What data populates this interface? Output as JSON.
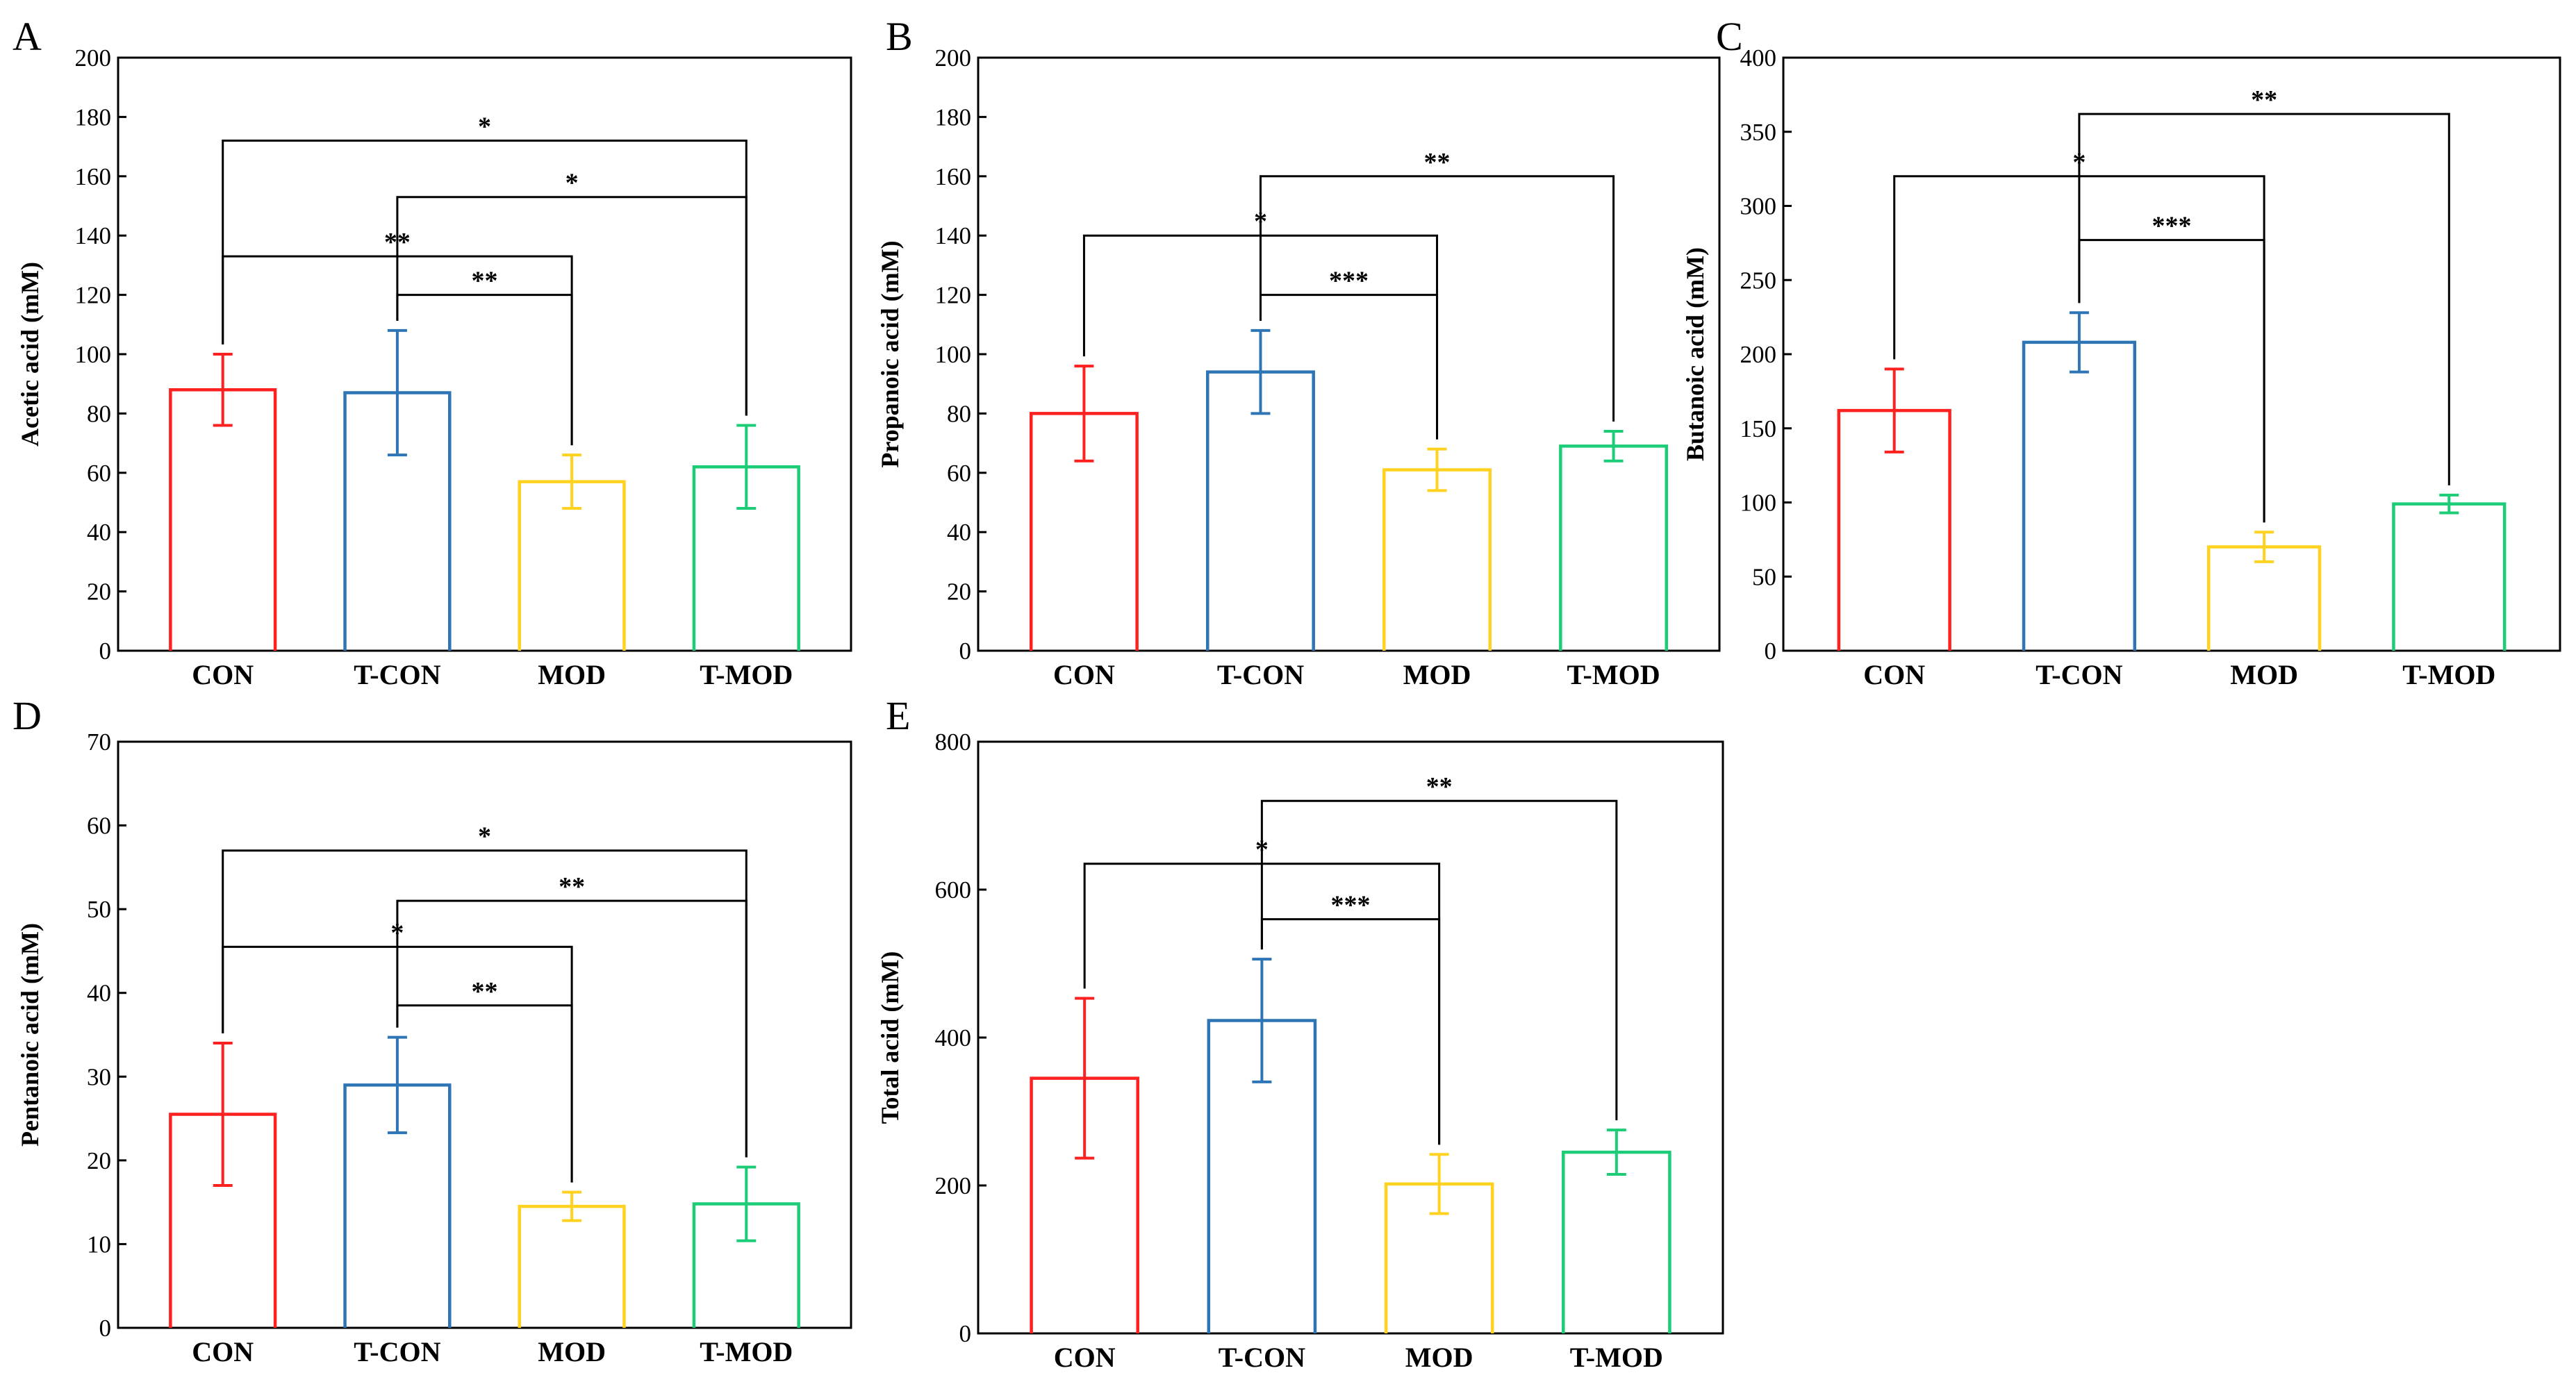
{
  "chart_data": [
    {
      "id": "A",
      "type": "bar",
      "panel_label": "A",
      "ylabel": "Acetic acid (mM)",
      "categories": [
        "CON",
        "T-CON",
        "MOD",
        "T-MOD"
      ],
      "values": [
        88,
        87,
        57,
        62
      ],
      "errors": [
        12,
        21,
        9,
        14
      ],
      "colors": [
        "#ff2020",
        "#2e75b6",
        "#ffd21f",
        "#1ccc76"
      ],
      "ylim": [
        0,
        200
      ],
      "yticks": [
        0,
        20,
        40,
        60,
        80,
        100,
        120,
        140,
        160,
        180,
        200
      ],
      "significance": [
        {
          "from": 0,
          "to": 3,
          "level": 172,
          "label": "*"
        },
        {
          "from": 1,
          "to": 3,
          "level": 153,
          "label": "*"
        },
        {
          "from": 0,
          "to": 2,
          "level": 133,
          "label": "**"
        },
        {
          "from": 1,
          "to": 2,
          "level": 120,
          "label": "**"
        }
      ]
    },
    {
      "id": "B",
      "type": "bar",
      "panel_label": "B",
      "ylabel": "Propanoic acid (mM)",
      "categories": [
        "CON",
        "T-CON",
        "MOD",
        "T-MOD"
      ],
      "values": [
        80,
        94,
        61,
        69
      ],
      "errors": [
        16,
        14,
        7,
        5
      ],
      "colors": [
        "#ff2020",
        "#2e75b6",
        "#ffd21f",
        "#1ccc76"
      ],
      "ylim": [
        0,
        200
      ],
      "yticks": [
        0,
        20,
        40,
        60,
        80,
        100,
        120,
        140,
        160,
        180,
        200
      ],
      "significance": [
        {
          "from": 1,
          "to": 3,
          "level": 160,
          "label": "**"
        },
        {
          "from": 0,
          "to": 2,
          "level": 140,
          "label": "*"
        },
        {
          "from": 1,
          "to": 2,
          "level": 120,
          "label": "***"
        }
      ]
    },
    {
      "id": "C",
      "type": "bar",
      "panel_label": "C",
      "ylabel": "Butanoic acid (mM)",
      "categories": [
        "CON",
        "T-CON",
        "MOD",
        "T-MOD"
      ],
      "values": [
        162,
        208,
        70,
        99
      ],
      "errors": [
        28,
        20,
        10,
        6
      ],
      "colors": [
        "#ff2020",
        "#2e75b6",
        "#ffd21f",
        "#1ccc76"
      ],
      "ylim": [
        0,
        400
      ],
      "yticks": [
        0,
        50,
        100,
        150,
        200,
        250,
        300,
        350,
        400
      ],
      "significance": [
        {
          "from": 1,
          "to": 3,
          "level": 362,
          "label": "**"
        },
        {
          "from": 0,
          "to": 2,
          "level": 320,
          "label": "*"
        },
        {
          "from": 1,
          "to": 2,
          "level": 277,
          "label": "***"
        }
      ]
    },
    {
      "id": "D",
      "type": "bar",
      "panel_label": "D",
      "ylabel": "Pentanoic acid (mM)",
      "categories": [
        "CON",
        "T-CON",
        "MOD",
        "T-MOD"
      ],
      "values": [
        25.5,
        29,
        14.5,
        14.8
      ],
      "errors": [
        8.5,
        5.7,
        1.7,
        4.4
      ],
      "colors": [
        "#ff2020",
        "#2e75b6",
        "#ffd21f",
        "#1ccc76"
      ],
      "ylim": [
        0,
        70
      ],
      "yticks": [
        0,
        10,
        20,
        30,
        40,
        50,
        60,
        70
      ],
      "significance": [
        {
          "from": 0,
          "to": 3,
          "level": 57,
          "label": "*"
        },
        {
          "from": 1,
          "to": 3,
          "level": 51,
          "label": "**"
        },
        {
          "from": 0,
          "to": 2,
          "level": 45.5,
          "label": "*"
        },
        {
          "from": 1,
          "to": 2,
          "level": 38.5,
          "label": "**"
        }
      ]
    },
    {
      "id": "E",
      "type": "bar",
      "panel_label": "E",
      "ylabel": "Total acid (mM)",
      "categories": [
        "CON",
        "T-CON",
        "MOD",
        "T-MOD"
      ],
      "values": [
        345,
        423,
        202,
        245
      ],
      "errors": [
        108,
        83,
        40,
        30
      ],
      "colors": [
        "#ff2020",
        "#2e75b6",
        "#ffd21f",
        "#1ccc76"
      ],
      "ylim": [
        0,
        800
      ],
      "yticks": [
        0,
        200,
        400,
        600,
        800
      ],
      "significance": [
        {
          "from": 1,
          "to": 3,
          "level": 720,
          "label": "**"
        },
        {
          "from": 0,
          "to": 2,
          "level": 635,
          "label": "*"
        },
        {
          "from": 1,
          "to": 2,
          "level": 560,
          "label": "***"
        }
      ]
    }
  ]
}
